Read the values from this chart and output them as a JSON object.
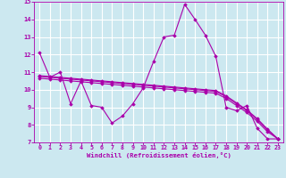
{
  "x": [
    0,
    1,
    2,
    3,
    4,
    5,
    6,
    7,
    8,
    9,
    10,
    11,
    12,
    13,
    14,
    15,
    16,
    17,
    18,
    19,
    20,
    21,
    22,
    23
  ],
  "line1": [
    12.1,
    10.7,
    11.0,
    9.2,
    10.5,
    9.1,
    9.0,
    8.1,
    8.5,
    9.2,
    10.1,
    11.6,
    13.0,
    13.1,
    14.85,
    14.0,
    13.1,
    11.9,
    9.0,
    8.8,
    9.1,
    7.8,
    7.2,
    7.2
  ],
  "line2": [
    10.65,
    10.6,
    10.55,
    10.5,
    10.45,
    10.4,
    10.35,
    10.3,
    10.25,
    10.2,
    10.15,
    10.1,
    10.05,
    10.0,
    9.95,
    9.9,
    9.85,
    9.8,
    9.5,
    9.1,
    8.7,
    8.2,
    7.6,
    7.2
  ],
  "line3": [
    10.75,
    10.7,
    10.65,
    10.6,
    10.55,
    10.5,
    10.45,
    10.4,
    10.35,
    10.3,
    10.25,
    10.2,
    10.15,
    10.1,
    10.05,
    10.0,
    9.95,
    9.9,
    9.6,
    9.2,
    8.8,
    8.3,
    7.7,
    7.2
  ],
  "line4": [
    10.8,
    10.75,
    10.7,
    10.65,
    10.6,
    10.55,
    10.5,
    10.45,
    10.4,
    10.35,
    10.3,
    10.25,
    10.2,
    10.15,
    10.1,
    10.05,
    10.0,
    9.95,
    9.65,
    9.25,
    8.85,
    8.35,
    7.75,
    7.2
  ],
  "color": "#aa00aa",
  "bg_color": "#cce8f0",
  "grid_color": "#ffffff",
  "xlabel": "Windchill (Refroidissement éolien,°C)",
  "xlim": [
    -0.5,
    23.5
  ],
  "ylim": [
    7,
    15
  ],
  "yticks": [
    7,
    8,
    9,
    10,
    11,
    12,
    13,
    14,
    15
  ],
  "xticks": [
    0,
    1,
    2,
    3,
    4,
    5,
    6,
    7,
    8,
    9,
    10,
    11,
    12,
    13,
    14,
    15,
    16,
    17,
    18,
    19,
    20,
    21,
    22,
    23
  ]
}
